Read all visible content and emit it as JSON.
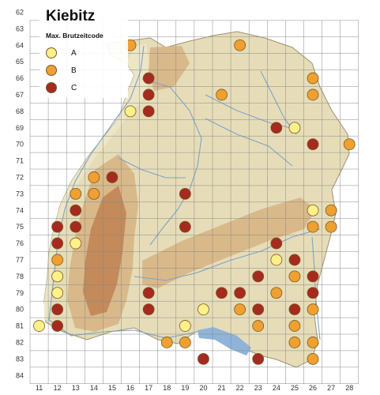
{
  "title": "Kiebitz",
  "legend": {
    "title": "Max. Brutzeitcode",
    "items": [
      {
        "code": "A",
        "label": "A",
        "color": "#fff08a"
      },
      {
        "code": "B",
        "label": "B",
        "color": "#f0a030"
      },
      {
        "code": "C",
        "label": "C",
        "color": "#a52a20"
      }
    ]
  },
  "colors": {
    "lowland": "#e6ddb8",
    "upland": "#d9b98a",
    "mountain": "#c48a5a",
    "lake": "#8fb4d8",
    "river": "#7fa2c8",
    "grid": "#888888",
    "border": "#a09070"
  },
  "grid": {
    "columns": [
      "11",
      "12",
      "13",
      "14",
      "15",
      "16",
      "17",
      "18",
      "19",
      "20",
      "21",
      "22",
      "23",
      "24",
      "25",
      "26",
      "27",
      "28"
    ],
    "rows": [
      "62",
      "63",
      "64",
      "65",
      "66",
      "67",
      "68",
      "69",
      "70",
      "71",
      "72",
      "73",
      "74",
      "75",
      "76",
      "77",
      "78",
      "79",
      "80",
      "81",
      "82",
      "83",
      "84"
    ]
  },
  "records": [
    {
      "col": "16",
      "row": "64",
      "code": "B"
    },
    {
      "col": "22",
      "row": "64",
      "code": "B"
    },
    {
      "col": "17",
      "row": "66",
      "code": "C"
    },
    {
      "col": "17",
      "row": "67",
      "code": "C"
    },
    {
      "col": "17",
      "row": "68",
      "code": "C"
    },
    {
      "col": "16",
      "row": "68",
      "code": "A"
    },
    {
      "col": "21",
      "row": "67",
      "code": "B"
    },
    {
      "col": "26",
      "row": "66",
      "code": "B"
    },
    {
      "col": "26",
      "row": "67",
      "code": "B"
    },
    {
      "col": "24",
      "row": "69",
      "code": "C"
    },
    {
      "col": "25",
      "row": "69",
      "code": "A"
    },
    {
      "col": "26",
      "row": "70",
      "code": "C"
    },
    {
      "col": "28",
      "row": "70",
      "code": "B"
    },
    {
      "col": "14",
      "row": "72",
      "code": "B"
    },
    {
      "col": "15",
      "row": "72",
      "code": "C"
    },
    {
      "col": "13",
      "row": "73",
      "code": "B"
    },
    {
      "col": "14",
      "row": "73",
      "code": "B"
    },
    {
      "col": "19",
      "row": "73",
      "code": "C"
    },
    {
      "col": "13",
      "row": "74",
      "code": "C"
    },
    {
      "col": "26",
      "row": "74",
      "code": "A"
    },
    {
      "col": "27",
      "row": "74",
      "code": "B"
    },
    {
      "col": "12",
      "row": "75",
      "code": "C"
    },
    {
      "col": "13",
      "row": "75",
      "code": "C"
    },
    {
      "col": "19",
      "row": "75",
      "code": "C"
    },
    {
      "col": "26",
      "row": "75",
      "code": "B"
    },
    {
      "col": "27",
      "row": "75",
      "code": "B"
    },
    {
      "col": "12",
      "row": "76",
      "code": "C"
    },
    {
      "col": "13",
      "row": "76",
      "code": "A"
    },
    {
      "col": "24",
      "row": "76",
      "code": "C"
    },
    {
      "col": "12",
      "row": "77",
      "code": "B"
    },
    {
      "col": "24",
      "row": "77",
      "code": "A"
    },
    {
      "col": "25",
      "row": "77",
      "code": "C"
    },
    {
      "col": "12",
      "row": "78",
      "code": "A"
    },
    {
      "col": "23",
      "row": "78",
      "code": "C"
    },
    {
      "col": "25",
      "row": "78",
      "code": "B"
    },
    {
      "col": "26",
      "row": "78",
      "code": "C"
    },
    {
      "col": "12",
      "row": "79",
      "code": "A"
    },
    {
      "col": "17",
      "row": "79",
      "code": "C"
    },
    {
      "col": "21",
      "row": "79",
      "code": "C"
    },
    {
      "col": "22",
      "row": "79",
      "code": "C"
    },
    {
      "col": "24",
      "row": "79",
      "code": "B"
    },
    {
      "col": "26",
      "row": "79",
      "code": "C"
    },
    {
      "col": "12",
      "row": "80",
      "code": "C"
    },
    {
      "col": "17",
      "row": "80",
      "code": "C"
    },
    {
      "col": "20",
      "row": "80",
      "code": "A"
    },
    {
      "col": "22",
      "row": "80",
      "code": "B"
    },
    {
      "col": "23",
      "row": "80",
      "code": "C"
    },
    {
      "col": "25",
      "row": "80",
      "code": "C"
    },
    {
      "col": "26",
      "row": "80",
      "code": "B"
    },
    {
      "col": "11",
      "row": "81",
      "code": "A"
    },
    {
      "col": "12",
      "row": "81",
      "code": "C"
    },
    {
      "col": "19",
      "row": "81",
      "code": "A"
    },
    {
      "col": "23",
      "row": "81",
      "code": "B"
    },
    {
      "col": "25",
      "row": "81",
      "code": "B"
    },
    {
      "col": "18",
      "row": "82",
      "code": "B"
    },
    {
      "col": "19",
      "row": "82",
      "code": "B"
    },
    {
      "col": "25",
      "row": "82",
      "code": "B"
    },
    {
      "col": "26",
      "row": "82",
      "code": "B"
    },
    {
      "col": "20",
      "row": "83",
      "code": "C"
    },
    {
      "col": "23",
      "row": "83",
      "code": "C"
    },
    {
      "col": "26",
      "row": "83",
      "code": "B"
    }
  ]
}
